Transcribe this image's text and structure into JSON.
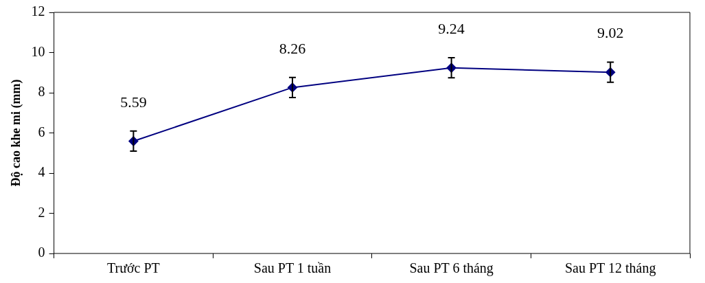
{
  "chart_data": {
    "type": "line",
    "ylabel": "Độ cao khe mi (mm)",
    "categories": [
      "Trước PT",
      "Sau PT 1 tuần",
      "Sau PT 6 tháng",
      "Sau PT 12 tháng"
    ],
    "series": [
      {
        "color": "#000080",
        "values": [
          5.59,
          8.26,
          9.24,
          9.02
        ],
        "errors": [
          0.5,
          0.5,
          0.5,
          0.5
        ]
      }
    ],
    "ylim": [
      0,
      12
    ],
    "yticks": [
      0,
      2,
      4,
      6,
      8,
      10,
      12
    ],
    "grid": false,
    "legend": false,
    "marker": "diamond",
    "line_style": "solid",
    "data_labels": true
  }
}
